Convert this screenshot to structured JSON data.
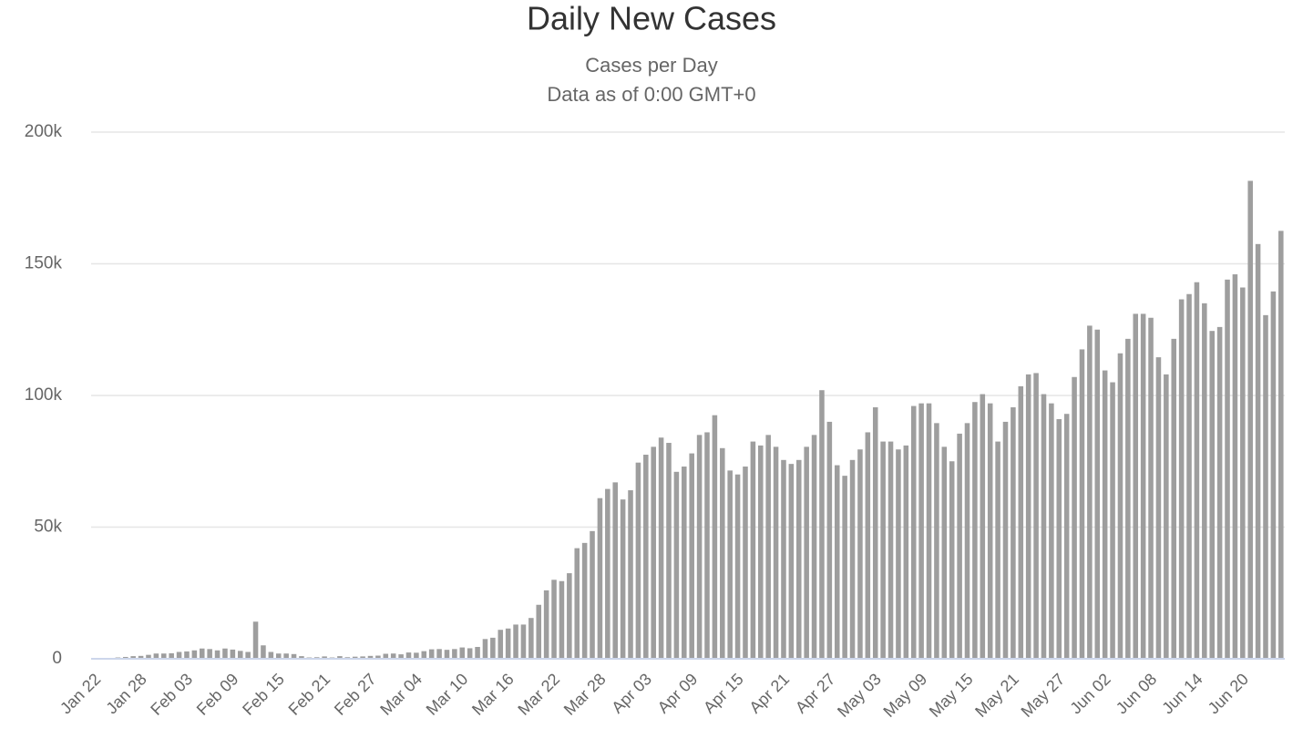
{
  "chart_data": {
    "type": "bar",
    "title": "Daily New Cases",
    "subtitle": [
      "Cases per Day",
      "Data as of 0:00 GMT+0"
    ],
    "categories": [
      "Jan 22",
      null,
      null,
      null,
      null,
      null,
      "Jan 28",
      null,
      null,
      null,
      null,
      null,
      "Feb 03",
      null,
      null,
      null,
      null,
      null,
      "Feb 09",
      null,
      null,
      null,
      null,
      null,
      "Feb 15",
      null,
      null,
      null,
      null,
      null,
      "Feb 21",
      null,
      null,
      null,
      null,
      null,
      "Feb 27",
      null,
      null,
      null,
      null,
      null,
      "Mar 04",
      null,
      null,
      null,
      null,
      null,
      "Mar 10",
      null,
      null,
      null,
      null,
      null,
      "Mar 16",
      null,
      null,
      null,
      null,
      null,
      "Mar 22",
      null,
      null,
      null,
      null,
      null,
      "Mar 28",
      null,
      null,
      null,
      null,
      null,
      "Apr 03",
      null,
      null,
      null,
      null,
      null,
      "Apr 09",
      null,
      null,
      null,
      null,
      null,
      "Apr 15",
      null,
      null,
      null,
      null,
      null,
      "Apr 21",
      null,
      null,
      null,
      null,
      null,
      "Apr 27",
      null,
      null,
      null,
      null,
      null,
      "May 03",
      null,
      null,
      null,
      null,
      null,
      "May 09",
      null,
      null,
      null,
      null,
      null,
      "May 15",
      null,
      null,
      null,
      null,
      null,
      "May 21",
      null,
      null,
      null,
      null,
      null,
      "May 27",
      null,
      null,
      null,
      null,
      null,
      "Jun 02",
      null,
      null,
      null,
      null,
      null,
      "Jun 08",
      null,
      null,
      null,
      null,
      null,
      "Jun 14",
      null,
      null,
      null,
      null,
      null,
      "Jun 20",
      null,
      null,
      null,
      null,
      null
    ],
    "values": [
      100,
      200,
      300,
      500,
      700,
      1000,
      1100,
      1500,
      2000,
      2000,
      2100,
      2600,
      2800,
      3200,
      3900,
      3700,
      3200,
      3900,
      3500,
      3000,
      2600,
      14100,
      5100,
      2600,
      2000,
      2000,
      1800,
      1000,
      500,
      600,
      900,
      500,
      1000,
      600,
      800,
      900,
      1100,
      1200,
      1900,
      2000,
      1700,
      2400,
      2300,
      2900,
      3600,
      3700,
      3400,
      3700,
      4300,
      4000,
      4500,
      7500,
      8000,
      11000,
      11500,
      13000,
      13000,
      15500,
      20500,
      26000,
      30000,
      29500,
      32500,
      42000,
      44000,
      48500,
      61000,
      64500,
      67000,
      60500,
      64000,
      74500,
      77500,
      80500,
      84000,
      82000,
      71000,
      73000,
      78000,
      85000,
      86000,
      92500,
      80000,
      71500,
      70000,
      73000,
      82500,
      81000,
      85000,
      80500,
      75500,
      74000,
      75500,
      80500,
      85000,
      102000,
      90000,
      73500,
      69500,
      75500,
      79500,
      86000,
      95500,
      82500,
      82500,
      79500,
      81000,
      96000,
      97000,
      97000,
      89500,
      80500,
      75000,
      85500,
      89500,
      97500,
      100500,
      97000,
      82500,
      90000,
      95500,
      103500,
      108000,
      108500,
      100500,
      97000,
      91000,
      93000,
      107000,
      117500,
      126500,
      125000,
      109500,
      105000,
      116000,
      121500,
      131000,
      131000,
      129500,
      114500,
      108000,
      121500,
      136500,
      138500,
      143000,
      135000,
      124500,
      126000,
      144000,
      146000,
      141000,
      181500,
      157500,
      130500,
      139500,
      162500
    ],
    "color": "#9e9e9e",
    "ylim": [
      0,
      200000
    ],
    "yticks": [
      0,
      {
        "value": 50000,
        "label": "50k"
      },
      {
        "value": 100000,
        "label": "100k"
      },
      {
        "value": 150000,
        "label": "150k"
      },
      {
        "value": 200000,
        "label": "200k"
      }
    ],
    "grid": true
  }
}
